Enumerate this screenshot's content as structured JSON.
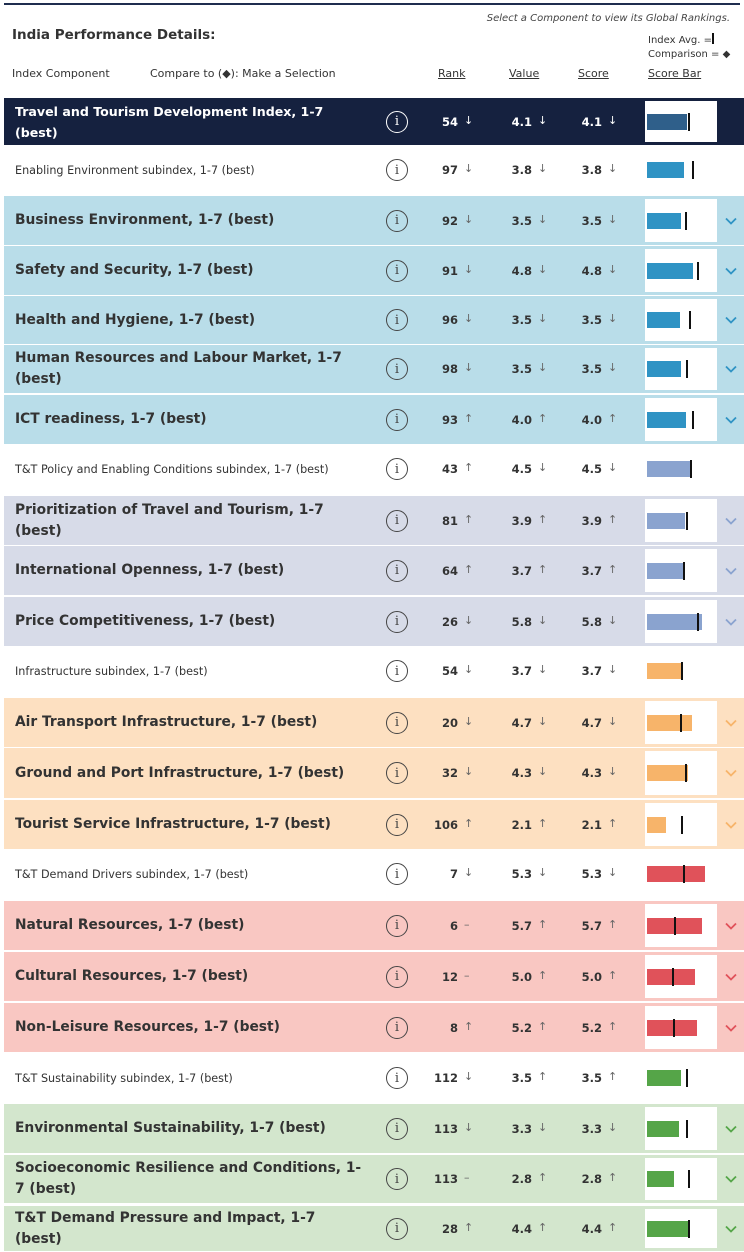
{
  "hint": "Select a Component to view its Global Rankings.",
  "title": "India Performance Details:",
  "legend": {
    "avg": "Index Avg. =",
    "comparison": "Comparison = ◆"
  },
  "columns": {
    "component": "Index Component",
    "compare": "Compare to (◆):  Make a Selection",
    "rank": "Rank",
    "value": "Value",
    "score": "Score",
    "scorebar": "Score Bar"
  },
  "colors": {
    "main": "#15213f",
    "enabling": "#2f93c4",
    "enabling_bg": "#b9dde9",
    "policy": "#8aa3cf",
    "policy_bg": "#d7dbe8",
    "infra": "#f7b46a",
    "infra_bg": "#fde0c1",
    "demand": "#e0525a",
    "demand_bg": "#f9c7c2",
    "sust": "#55a548",
    "sust_bg": "#d3e6cd"
  },
  "rows": [
    {
      "label": "Travel and Tourism Development Index, 1-7 (best)",
      "kind": "main",
      "rank": "54",
      "rank_dir": "↓",
      "value": "4.1",
      "value_dir": "↓",
      "score": "4.1",
      "score_dir": "↓",
      "fill": 0.57,
      "avg": 0.59,
      "chevron": false
    },
    {
      "label": "Enabling Environment subindex, 1-7 (best)",
      "kind": "sub",
      "group": "enabling",
      "rank": "97",
      "rank_dir": "↓",
      "value": "3.8",
      "value_dir": "↓",
      "score": "3.8",
      "score_dir": "↓",
      "fill": 0.53,
      "avg": 0.64,
      "chevron": false
    },
    {
      "label": "Business Environment, 1-7 (best)",
      "kind": "big",
      "group": "enabling",
      "rank": "92",
      "rank_dir": "↓",
      "value": "3.5",
      "value_dir": "↓",
      "score": "3.5",
      "score_dir": "↓",
      "fill": 0.49,
      "avg": 0.54,
      "chevron": true
    },
    {
      "label": "Safety and Security, 1-7 (best)",
      "kind": "big",
      "group": "enabling",
      "rank": "91",
      "rank_dir": "↓",
      "value": "4.8",
      "value_dir": "↓",
      "score": "4.8",
      "score_dir": "↓",
      "fill": 0.66,
      "avg": 0.72,
      "chevron": true
    },
    {
      "label": "Health and Hygiene, 1-7 (best)",
      "kind": "big",
      "group": "enabling",
      "rank": "96",
      "rank_dir": "↓",
      "value": "3.5",
      "value_dir": "↓",
      "score": "3.5",
      "score_dir": "↓",
      "fill": 0.47,
      "avg": 0.6,
      "chevron": true
    },
    {
      "label": "Human Resources and Labour Market, 1-7 (best)",
      "kind": "big",
      "group": "enabling",
      "rank": "98",
      "rank_dir": "↓",
      "value": "3.5",
      "value_dir": "↓",
      "score": "3.5",
      "score_dir": "↓",
      "fill": 0.48,
      "avg": 0.56,
      "chevron": true
    },
    {
      "label": "ICT readiness, 1-7 (best)",
      "kind": "big",
      "group": "enabling",
      "rank": "93",
      "rank_dir": "↑",
      "value": "4.0",
      "value_dir": "↑",
      "score": "4.0",
      "score_dir": "↑",
      "fill": 0.56,
      "avg": 0.64,
      "chevron": true
    },
    {
      "label": "T&T Policy and Enabling Conditions subindex, 1-7 (best)",
      "kind": "sub",
      "group": "policy",
      "rank": "43",
      "rank_dir": "↑",
      "value": "4.5",
      "value_dir": "↓",
      "score": "4.5",
      "score_dir": "↓",
      "fill": 0.61,
      "avg": 0.61,
      "chevron": false
    },
    {
      "label": "Prioritization of Travel and Tourism, 1-7 (best)",
      "kind": "big",
      "group": "policy",
      "rank": "81",
      "rank_dir": "↑",
      "value": "3.9",
      "value_dir": "↑",
      "score": "3.9",
      "score_dir": "↑",
      "fill": 0.54,
      "avg": 0.56,
      "chevron": true
    },
    {
      "label": "International Openness, 1-7 (best)",
      "kind": "big",
      "group": "policy",
      "rank": "64",
      "rank_dir": "↑",
      "value": "3.7",
      "value_dir": "↑",
      "score": "3.7",
      "score_dir": "↑",
      "fill": 0.51,
      "avg": 0.52,
      "chevron": true
    },
    {
      "label": "Price Competitiveness, 1-7 (best)",
      "kind": "big",
      "group": "policy",
      "rank": "26",
      "rank_dir": "↓",
      "value": "5.8",
      "value_dir": "↓",
      "score": "5.8",
      "score_dir": "↓",
      "fill": 0.79,
      "avg": 0.72,
      "chevron": true
    },
    {
      "label": "Infrastructure subindex, 1-7 (best)",
      "kind": "sub",
      "group": "infra",
      "rank": "54",
      "rank_dir": "↓",
      "value": "3.7",
      "value_dir": "↓",
      "score": "3.7",
      "score_dir": "↓",
      "fill": 0.49,
      "avg": 0.49,
      "chevron": false
    },
    {
      "label": "Air Transport Infrastructure, 1-7 (best)",
      "kind": "big",
      "group": "infra",
      "rank": "20",
      "rank_dir": "↓",
      "value": "4.7",
      "value_dir": "↓",
      "score": "4.7",
      "score_dir": "↓",
      "fill": 0.64,
      "avg": 0.47,
      "chevron": true
    },
    {
      "label": "Ground and Port Infrastructure, 1-7 (best)",
      "kind": "big",
      "group": "infra",
      "rank": "32",
      "rank_dir": "↓",
      "value": "4.3",
      "value_dir": "↓",
      "score": "4.3",
      "score_dir": "↓",
      "fill": 0.58,
      "avg": 0.54,
      "chevron": true
    },
    {
      "label": "Tourist Service Infrastructure, 1-7 (best)",
      "kind": "big",
      "group": "infra",
      "rank": "106",
      "rank_dir": "↑",
      "value": "2.1",
      "value_dir": "↑",
      "score": "2.1",
      "score_dir": "↑",
      "fill": 0.27,
      "avg": 0.49,
      "chevron": true
    },
    {
      "label": "T&T Demand Drivers subindex, 1-7 (best)",
      "kind": "sub",
      "group": "demand",
      "rank": "7",
      "rank_dir": "↓",
      "value": "5.3",
      "value_dir": "↓",
      "score": "5.3",
      "score_dir": "↓",
      "fill": 0.83,
      "avg": 0.51,
      "chevron": false
    },
    {
      "label": "Natural Resources, 1-7 (best)",
      "kind": "big",
      "group": "demand",
      "rank": "6",
      "rank_dir": "–",
      "value": "5.7",
      "value_dir": "↑",
      "score": "5.7",
      "score_dir": "↑",
      "fill": 0.78,
      "avg": 0.39,
      "chevron": true
    },
    {
      "label": "Cultural Resources, 1-7 (best)",
      "kind": "big",
      "group": "demand",
      "rank": "12",
      "rank_dir": "–",
      "value": "5.0",
      "value_dir": "↑",
      "score": "5.0",
      "score_dir": "↑",
      "fill": 0.68,
      "avg": 0.36,
      "chevron": true
    },
    {
      "label": "Non-Leisure Resources, 1-7 (best)",
      "kind": "big",
      "group": "demand",
      "rank": "8",
      "rank_dir": "↑",
      "value": "5.2",
      "value_dir": "↑",
      "score": "5.2",
      "score_dir": "↑",
      "fill": 0.71,
      "avg": 0.37,
      "chevron": true
    },
    {
      "label": "T&T Sustainability subindex, 1-7 (best)",
      "kind": "sub",
      "group": "sust",
      "rank": "112",
      "rank_dir": "↓",
      "value": "3.5",
      "value_dir": "↑",
      "score": "3.5",
      "score_dir": "↑",
      "fill": 0.48,
      "avg": 0.56,
      "chevron": false
    },
    {
      "label": "Environmental Sustainability, 1-7 (best)",
      "kind": "big",
      "group": "sust",
      "rank": "113",
      "rank_dir": "↓",
      "value": "3.3",
      "value_dir": "↓",
      "score": "3.3",
      "score_dir": "↓",
      "fill": 0.46,
      "avg": 0.55,
      "chevron": true
    },
    {
      "label": "Socioeconomic Resilience and Conditions, 1-7 (best)",
      "kind": "big",
      "group": "sust",
      "rank": "113",
      "rank_dir": "–",
      "value": "2.8",
      "value_dir": "↑",
      "score": "2.8",
      "score_dir": "↑",
      "fill": 0.39,
      "avg": 0.58,
      "chevron": true
    },
    {
      "label": "T&T Demand Pressure and Impact, 1-7 (best)",
      "kind": "big",
      "group": "sust",
      "rank": "28",
      "rank_dir": "↑",
      "value": "4.4",
      "value_dir": "↑",
      "score": "4.4",
      "score_dir": "↑",
      "fill": 0.61,
      "avg": 0.58,
      "chevron": true
    }
  ]
}
